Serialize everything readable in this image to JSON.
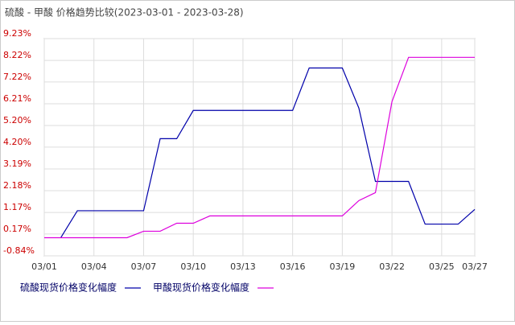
{
  "chart_data": {
    "type": "line",
    "title": "硫酸 - 甲酸 价格趋势比较(2023-03-01 - 2023-03-28)",
    "categories": [
      "03/01",
      null,
      null,
      "03/04",
      null,
      null,
      "03/07",
      null,
      null,
      "03/10",
      null,
      null,
      "03/13",
      null,
      null,
      "03/16",
      null,
      null,
      "03/19",
      null,
      null,
      "03/22",
      null,
      null,
      "03/25",
      null,
      "03/27"
    ],
    "series": [
      {
        "name": "硫酸现货价格变化幅度",
        "color": "#0000aa",
        "values": [
          null,
          0,
          1.25,
          1.25,
          1.25,
          1.25,
          1.25,
          4.59,
          4.59,
          5.9,
          5.9,
          5.9,
          5.9,
          5.9,
          5.9,
          5.9,
          7.87,
          7.87,
          7.87,
          6.01,
          2.61,
          2.61,
          2.61,
          0.63,
          0.63,
          0.63,
          1.31
        ]
      },
      {
        "name": "甲酸现货价格变化幅度",
        "color": "#dd00dd",
        "values": [
          0,
          0,
          0,
          0,
          0,
          0,
          0.3,
          0.3,
          0.67,
          0.67,
          1.01,
          1.01,
          1.01,
          1.01,
          1.01,
          1.01,
          1.01,
          1.01,
          1.01,
          1.72,
          2.09,
          6.31,
          8.36,
          8.36,
          8.36,
          8.36,
          8.36
        ]
      }
    ],
    "ylim": [
      -0.84,
      9.23
    ],
    "yticks": [
      {
        "value": -0.84,
        "label": "-0.84%"
      },
      {
        "value": 0.17,
        "label": "0.17%"
      },
      {
        "value": 1.17,
        "label": "1.17%"
      },
      {
        "value": 2.18,
        "label": "2.18%"
      },
      {
        "value": 3.19,
        "label": "3.19%"
      },
      {
        "value": 4.2,
        "label": "4.20%"
      },
      {
        "value": 5.2,
        "label": "5.20%"
      },
      {
        "value": 6.21,
        "label": "6.21%"
      },
      {
        "value": 7.22,
        "label": "7.22%"
      },
      {
        "value": 8.22,
        "label": "8.22%"
      },
      {
        "value": 9.23,
        "label": "9.23%"
      }
    ],
    "grid": true
  }
}
